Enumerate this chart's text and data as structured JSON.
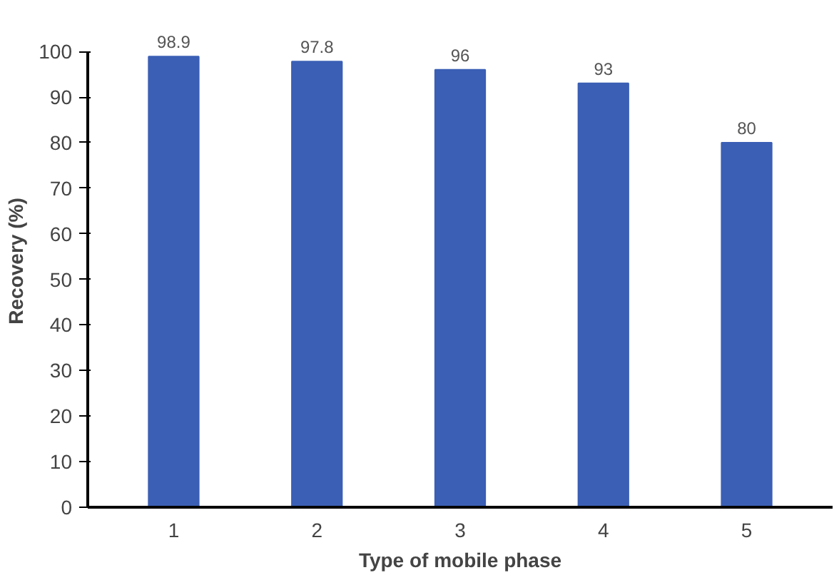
{
  "chart_data": {
    "type": "bar",
    "xlabel": "Type of mobile phase",
    "ylabel": "Recovery (%)",
    "categories": [
      "1",
      "2",
      "3",
      "4",
      "5"
    ],
    "values": [
      98.9,
      97.8,
      96,
      93,
      80
    ],
    "color": "#3b5fb5",
    "ylim": [
      0,
      100
    ],
    "yticks": [
      0,
      10,
      20,
      30,
      40,
      50,
      60,
      70,
      80,
      90,
      100
    ],
    "data_labels": true,
    "grid": false
  }
}
